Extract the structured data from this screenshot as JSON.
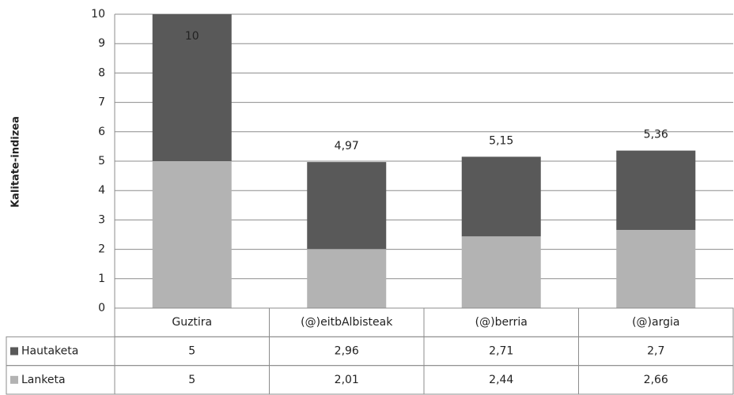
{
  "chart_data": {
    "type": "stacked_bar",
    "y_label": "Kalitate-indizea",
    "categories": [
      "Guztira",
      "(@)eitbAlbisteak",
      "(@)berria",
      "(@)argia"
    ],
    "series": [
      {
        "name": "Lanketa",
        "color": "#b3b3b3",
        "values": [
          5,
          2.01,
          2.44,
          2.66
        ],
        "value_labels": [
          "5",
          "2,01",
          "2,44",
          "2,66"
        ]
      },
      {
        "name": "Hautaketa",
        "color": "#595959",
        "values": [
          5,
          2.96,
          2.71,
          2.7
        ],
        "value_labels": [
          "5",
          "2,96",
          "2,71",
          "2,7"
        ]
      }
    ],
    "totals": [
      10,
      4.97,
      5.15,
      5.36
    ],
    "total_labels": [
      "10",
      "4,97",
      "5,15",
      "5,36"
    ],
    "ylim": [
      0,
      10
    ],
    "yticks": [
      0,
      1,
      2,
      3,
      4,
      5,
      6,
      7,
      8,
      9,
      10
    ],
    "grid": true
  }
}
